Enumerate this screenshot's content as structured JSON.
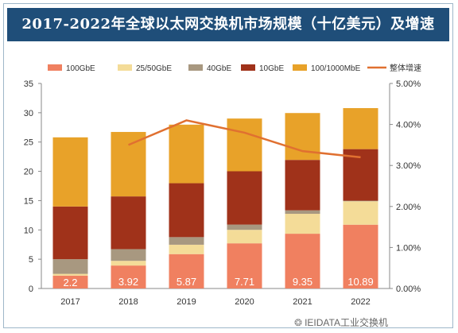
{
  "title": "2017-2022年全球以太网交换机市场规模（十亿美元）及增速",
  "watermark": "IEIDATA工业交换机",
  "chart_data": {
    "type": "bar",
    "stacked": true,
    "categories": [
      "2017",
      "2018",
      "2019",
      "2020",
      "2021",
      "2022"
    ],
    "series": [
      {
        "name": "100GbE",
        "color": "#f08060",
        "values": [
          2.2,
          3.92,
          5.87,
          7.71,
          9.35,
          10.89
        ]
      },
      {
        "name": "25/50GbE",
        "color": "#f4dc98",
        "values": [
          0.3,
          0.8,
          1.6,
          2.3,
          3.4,
          4.0
        ]
      },
      {
        "name": "40GbE",
        "color": "#a89880",
        "values": [
          2.5,
          2.0,
          1.3,
          0.9,
          0.6,
          0.1
        ]
      },
      {
        "name": "10GbE",
        "color": "#a0321a",
        "values": [
          9.0,
          9.0,
          9.2,
          9.1,
          8.6,
          8.8
        ]
      },
      {
        "name": "100/1000MbE",
        "color": "#e8a229",
        "values": [
          11.8,
          11.0,
          10.0,
          9.0,
          8.0,
          7.0
        ]
      }
    ],
    "line": {
      "name": "整体增速",
      "color": "#e07030",
      "values": [
        null,
        3.5,
        4.1,
        3.8,
        3.35,
        3.2
      ],
      "unit": "%"
    },
    "data_labels": [
      "2.2",
      "3.92",
      "5.87",
      "7.71",
      "9.35",
      "10.89"
    ],
    "ylim": [
      0,
      35
    ],
    "yticks": [
      0,
      5,
      10,
      15,
      20,
      25,
      30,
      35
    ],
    "y2lim": [
      0,
      5
    ],
    "y2ticks": [
      "0.00%",
      "1.00%",
      "2.00%",
      "3.00%",
      "4.00%",
      "5.00%"
    ],
    "legend_position": "top",
    "grid": false
  }
}
